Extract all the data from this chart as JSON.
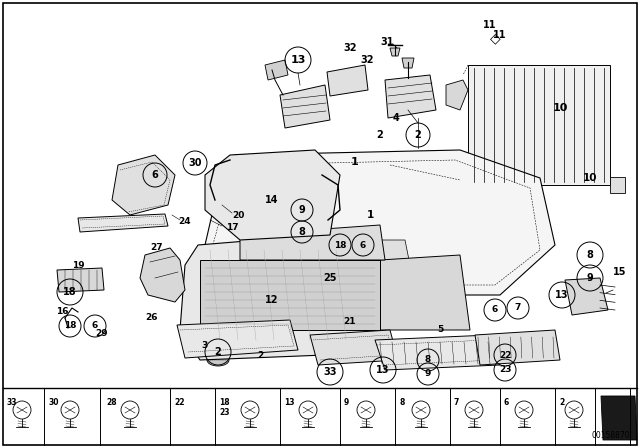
{
  "bg_color": "#ffffff",
  "diagram_id": "00158870",
  "fig_width": 6.4,
  "fig_height": 4.48,
  "dpi": 100
}
